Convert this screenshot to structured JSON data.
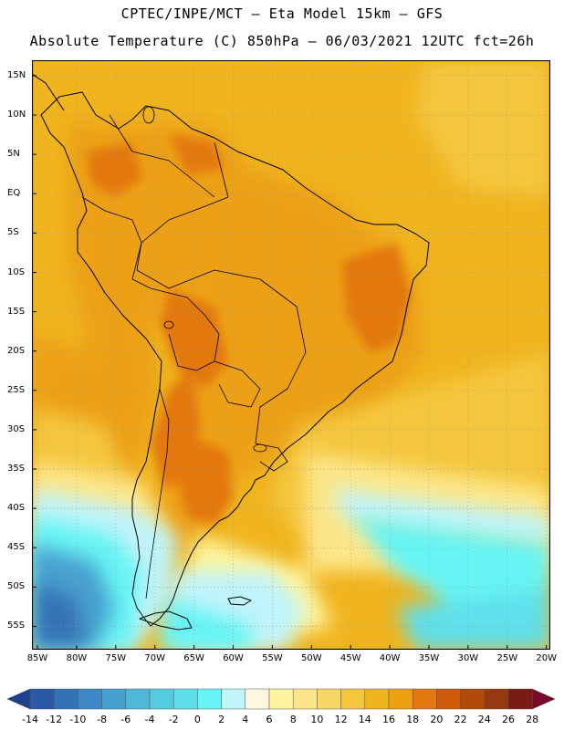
{
  "header": {
    "line1": "CPTEC/INPE/MCT –  Eta Model 15km – GFS",
    "line2": "Absolute Temperature (C) 850hPa – 06/03/2021 12UTC fct=26h"
  },
  "map": {
    "lat_labels": [
      "15N",
      "10N",
      "5N",
      "EQ",
      "5S",
      "10S",
      "15S",
      "20S",
      "25S",
      "30S",
      "35S",
      "40S",
      "45S",
      "50S",
      "55S"
    ],
    "lon_labels": [
      "85W",
      "80W",
      "75W",
      "70W",
      "65W",
      "60W",
      "55W",
      "50W",
      "45W",
      "40W",
      "35W",
      "30W",
      "25W",
      "20W"
    ],
    "frame_color": "#000000",
    "grid_color": "#9a9a9a"
  },
  "colorbar": {
    "levels": [
      "-14",
      "-12",
      "-10",
      "-8",
      "-6",
      "-4",
      "-2",
      "0",
      "2",
      "4",
      "6",
      "8",
      "10",
      "12",
      "14",
      "16",
      "18",
      "20",
      "22",
      "24",
      "26",
      "28"
    ],
    "colors": [
      "#1f3f8f",
      "#2a59a6",
      "#3472b6",
      "#3d88c4",
      "#46a0cf",
      "#4fb8d8",
      "#55cbe2",
      "#5ee0ea",
      "#66f4f4",
      "#bff4fa",
      "#fdf6e0",
      "#fff5a0",
      "#fce68a",
      "#f8d664",
      "#f4c63e",
      "#f0b41e",
      "#eca012",
      "#e3780c",
      "#cf5a08",
      "#b24a08",
      "#973810",
      "#7a1b14",
      "#7a0a2a"
    ]
  }
}
